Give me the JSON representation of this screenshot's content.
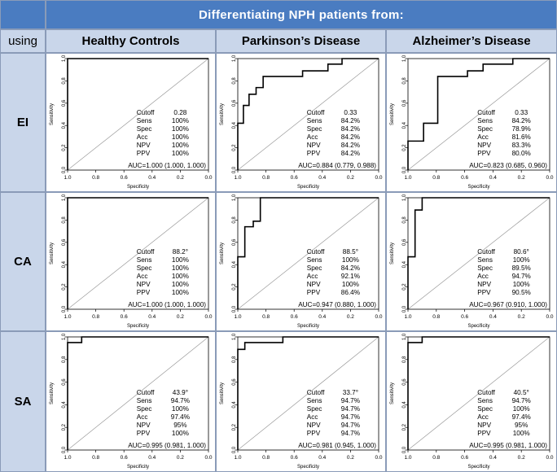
{
  "header": {
    "title": "Differentiating  NPH  patients from:",
    "using_label": "using"
  },
  "columns": [
    "Healthy Controls",
    "Parkinson’s Disease",
    "Alzheimer’s Disease"
  ],
  "rows": [
    "EI",
    "CA",
    "SA"
  ],
  "axis": {
    "xlabel": "Specificity",
    "ylabel": "Sensitivity",
    "xticks": [
      "1.0",
      "0.8",
      "0.6",
      "0.4",
      "0.2",
      "0.0"
    ],
    "yticks": [
      "0.0",
      "0.2",
      "0.4",
      "0.6",
      "0.8",
      "1.0"
    ]
  },
  "stat_labels": [
    "Cutoff",
    "Sens",
    "Spec",
    "Acc",
    "NPV",
    "PPV"
  ],
  "chart_data": [
    {
      "type": "line",
      "row": "EI",
      "col": "Healthy Controls",
      "x": [
        1.0,
        1.0,
        0.0
      ],
      "y": [
        0.0,
        1.0,
        1.0
      ],
      "stats": [
        "0.28",
        "100%",
        "100%",
        "100%",
        "100%",
        "100%"
      ],
      "auc": "AUC=1.000 (1.000, 1.000)"
    },
    {
      "type": "line",
      "row": "EI",
      "col": "Parkinson’s Disease",
      "x": [
        1.0,
        1.0,
        0.96,
        0.96,
        0.92,
        0.92,
        0.87,
        0.87,
        0.82,
        0.82,
        0.69,
        0.69,
        0.54,
        0.54,
        0.49,
        0.49,
        0.36,
        0.36,
        0.26,
        0.26,
        0.0
      ],
      "y": [
        0.0,
        0.42,
        0.42,
        0.58,
        0.58,
        0.68,
        0.68,
        0.74,
        0.74,
        0.84,
        0.84,
        0.84,
        0.84,
        0.89,
        0.89,
        0.89,
        0.89,
        0.95,
        0.95,
        1.0,
        1.0
      ],
      "stats": [
        "0.33",
        "84.2%",
        "84.2%",
        "84.2%",
        "84.2%",
        "84.2%"
      ],
      "auc": "AUC=0.884 (0.779, 0.988)"
    },
    {
      "type": "line",
      "row": "EI",
      "col": "Alzheimer’s Disease",
      "x": [
        1.0,
        1.0,
        0.89,
        0.89,
        0.79,
        0.79,
        0.79,
        0.58,
        0.58,
        0.47,
        0.47,
        0.37,
        0.37,
        0.26,
        0.26,
        0.0
      ],
      "y": [
        0.0,
        0.26,
        0.26,
        0.42,
        0.42,
        0.84,
        0.84,
        0.84,
        0.89,
        0.89,
        0.95,
        0.95,
        0.95,
        0.95,
        1.0,
        1.0
      ],
      "stats": [
        "0.33",
        "84.2%",
        "78.9%",
        "81.6%",
        "83.3%",
        "80.0%"
      ],
      "auc": "AUC=0.823 (0.685, 0.960)"
    },
    {
      "type": "line",
      "row": "CA",
      "col": "Healthy Controls",
      "x": [
        1.0,
        1.0,
        0.0
      ],
      "y": [
        0.0,
        1.0,
        1.0
      ],
      "stats": [
        "88.2°",
        "100%",
        "100%",
        "100%",
        "100%",
        "100%"
      ],
      "auc": "AUC=1.000 (1.000, 1.000)"
    },
    {
      "type": "line",
      "row": "CA",
      "col": "Parkinson’s Disease",
      "x": [
        1.0,
        1.0,
        0.95,
        0.95,
        0.89,
        0.89,
        0.84,
        0.84,
        0.0
      ],
      "y": [
        0.0,
        0.47,
        0.47,
        0.74,
        0.74,
        0.79,
        0.79,
        1.0,
        1.0
      ],
      "stats": [
        "88.5°",
        "100%",
        "84.2%",
        "92.1%",
        "100%",
        "86.4%"
      ],
      "auc": "AUC=0.947 (0.880, 1.000)"
    },
    {
      "type": "line",
      "row": "CA",
      "col": "Alzheimer’s Disease",
      "x": [
        1.0,
        1.0,
        0.95,
        0.95,
        0.9,
        0.9,
        0.0
      ],
      "y": [
        0.0,
        0.47,
        0.47,
        0.89,
        0.89,
        1.0,
        1.0
      ],
      "stats": [
        "80.6°",
        "100%",
        "89.5%",
        "94.7%",
        "100%",
        "90.5%"
      ],
      "auc": "AUC=0.967 (0.910, 1.000)"
    },
    {
      "type": "line",
      "row": "SA",
      "col": "Healthy Controls",
      "x": [
        1.0,
        1.0,
        0.9,
        0.9,
        0.0
      ],
      "y": [
        0.0,
        0.95,
        0.95,
        1.0,
        1.0
      ],
      "stats": [
        "43.9°",
        "94.7%",
        "100%",
        "97.4%",
        "95%",
        "100%"
      ],
      "auc": "AUC=0.995 (0.981, 1.000)"
    },
    {
      "type": "line",
      "row": "SA",
      "col": "Parkinson’s Disease",
      "x": [
        1.0,
        1.0,
        0.95,
        0.95,
        0.68,
        0.68,
        0.0
      ],
      "y": [
        0.0,
        0.89,
        0.89,
        0.95,
        0.95,
        1.0,
        1.0
      ],
      "stats": [
        "33.7°",
        "94.7%",
        "94.7%",
        "94.7%",
        "94.7%",
        "94.7%"
      ],
      "auc": "AUC=0.981 (0.945, 1.000)"
    },
    {
      "type": "line",
      "row": "SA",
      "col": "Alzheimer’s Disease",
      "x": [
        1.0,
        1.0,
        0.9,
        0.9,
        0.0
      ],
      "y": [
        0.0,
        0.95,
        0.95,
        1.0,
        1.0
      ],
      "stats": [
        "40.5°",
        "94.7%",
        "100%",
        "97.4%",
        "95%",
        "100%"
      ],
      "auc": "AUC=0.995 (0.981, 1.000)"
    }
  ]
}
